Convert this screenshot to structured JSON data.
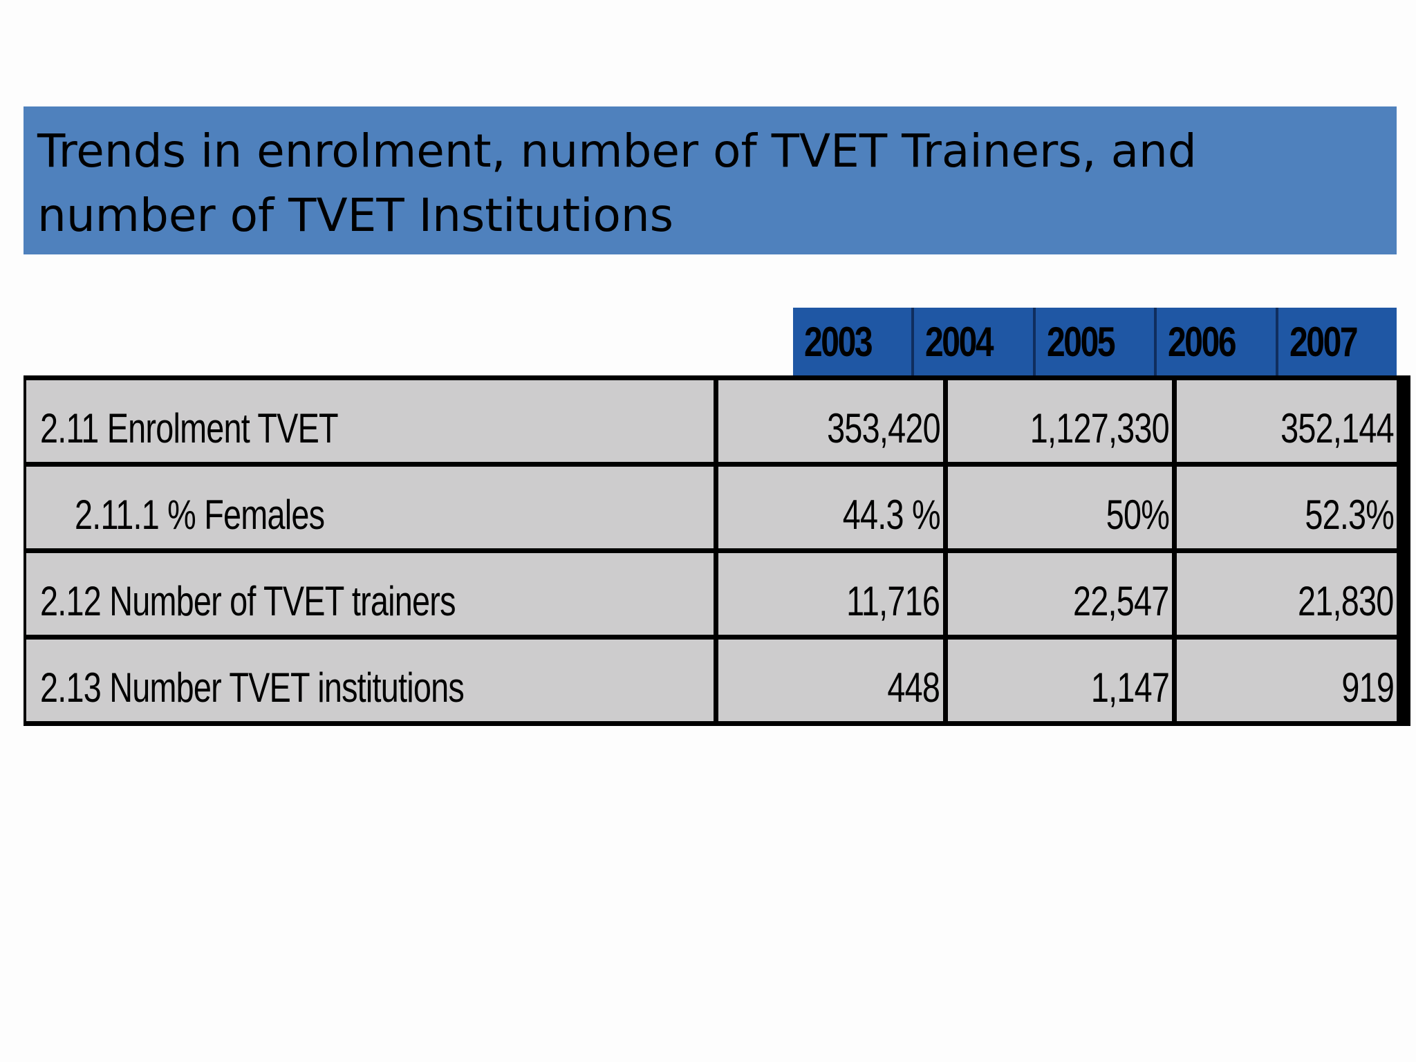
{
  "slide": {
    "title": "Trends in enrolment, number of TVET Trainers, and number of TVET Institutions"
  },
  "table": {
    "year_headers": [
      "2003",
      "2004",
      "2005",
      "2006",
      "2007"
    ],
    "rows": [
      {
        "label": "2.11 Enrolment TVET",
        "values": [
          "353,420",
          "1,127,330",
          "352,144"
        ]
      },
      {
        "label": "2.11.1 % Females",
        "values": [
          "44.3 %",
          "50%",
          "52.3%"
        ]
      },
      {
        "label": "2.12 Number of TVET trainers",
        "values": [
          "11,716",
          "22,547",
          "21,830"
        ]
      },
      {
        "label": "2.13 Number TVET institutions",
        "values": [
          "448",
          "1,147",
          "919"
        ]
      }
    ]
  },
  "colors": {
    "title_banner": "#4f81bd",
    "year_header": "#1f57a4",
    "table_cell": "#cdcccd"
  }
}
